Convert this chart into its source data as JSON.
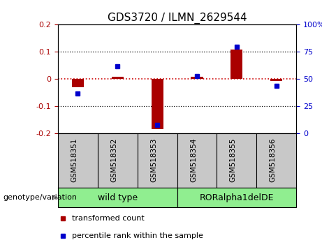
{
  "title": "GDS3720 / ILMN_2629544",
  "samples": [
    "GSM518351",
    "GSM518352",
    "GSM518353",
    "GSM518354",
    "GSM518355",
    "GSM518356"
  ],
  "red_values": [
    -0.03,
    0.008,
    -0.185,
    0.008,
    0.108,
    -0.008
  ],
  "blue_values": [
    37,
    62,
    8,
    53,
    80,
    44
  ],
  "ylim_left": [
    -0.2,
    0.2
  ],
  "ylim_right": [
    0,
    100
  ],
  "yticks_left": [
    -0.2,
    -0.1,
    0.0,
    0.1,
    0.2
  ],
  "yticks_right": [
    0,
    25,
    50,
    75,
    100
  ],
  "ytick_labels_right": [
    "0",
    "25",
    "50",
    "75",
    "100%"
  ],
  "group_label": "genotype/variation",
  "legend_red": "transformed count",
  "legend_blue": "percentile rank within the sample",
  "red_color": "#AA0000",
  "blue_color": "#0000CC",
  "bar_width": 0.3,
  "blue_marker_size": 5,
  "dotted_color": "#CC0000",
  "bg_gray": "#C8C8C8",
  "bg_green": "#90EE90",
  "title_fontsize": 11,
  "tick_fontsize": 8,
  "label_fontsize": 8,
  "group1_label": "wild type",
  "group2_label": "RORalpha1delDE"
}
